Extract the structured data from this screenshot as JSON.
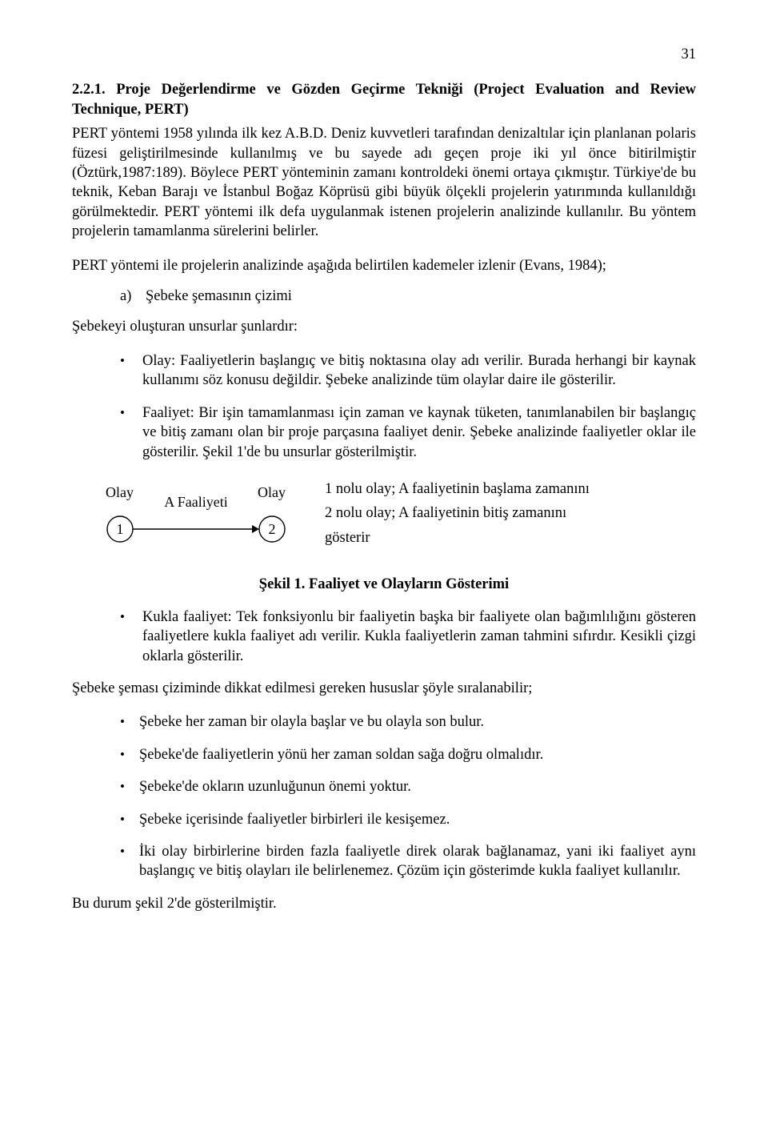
{
  "page_number": "31",
  "section_number": "2.2.1.",
  "section_title_rest": "Proje Değerlendirme ve Gözden Geçirme Tekniği (Project Evaluation and Review Technique, PERT)",
  "p1": "PERT yöntemi 1958 yılında ilk kez A.B.D. Deniz kuvvetleri tarafından denizaltılar için planlanan polaris füzesi geliştirilmesinde kullanılmış ve bu sayede adı geçen proje iki yıl önce bitirilmiştir (Öztürk,1987:189). Böylece PERT yönteminin zamanı kontroldeki önemi ortaya çıkmıştır. Türkiye'de bu teknik, Keban Barajı ve İstanbul Boğaz Köprüsü gibi büyük ölçekli projelerin yatırımında kullanıldığı görülmektedir. PERT yöntemi ilk defa uygulanmak istenen projelerin analizinde kullanılır. Bu yöntem projelerin tamamlanma sürelerini belirler.",
  "p2": "PERT yöntemi ile projelerin analizinde aşağıda belirtilen kademeler izlenir (Evans, 1984);",
  "list_a_marker": "a)",
  "list_a_text": "Şebeke şemasının çizimi",
  "p3": "Şebekeyi oluşturan unsurlar şunlardır:",
  "b1": "Olay: Faaliyetlerin başlangıç ve bitiş noktasına olay adı verilir. Burada herhangi bir kaynak kullanımı söz konusu değildir. Şebeke analizinde tüm olaylar daire ile gösterilir.",
  "b2": "Faaliyet: Bir işin tamamlanması için zaman ve kaynak tüketen, tanımlanabilen bir başlangıç ve bitiş zamanı olan bir proje parçasına faaliyet denir. Şebeke analizinde faaliyetler oklar ile gösterilir. Şekil 1'de bu unsurlar gösterilmiştir.",
  "fig": {
    "left_label": "Olay",
    "right_label": "Olay",
    "edge_label": "A Faaliyeti",
    "node1": "1",
    "node2": "2",
    "desc1": "1 nolu olay; A faaliyetinin başlama zamanını",
    "desc2": "2 nolu olay; A faaliyetinin bitiş zamanını",
    "desc3": "gösterir",
    "caption": "Şekil 1. Faaliyet ve Olayların Gösterimi",
    "stroke": "#000000",
    "bg": "#ffffff",
    "circle_r": 16,
    "line_width": 1.4,
    "arrow_size": 9,
    "font_size_label": 18,
    "font_size_node": 18
  },
  "b3": "Kukla faaliyet: Tek fonksiyonlu bir faaliyetin başka bir faaliyete olan bağımlılığını gösteren faaliyetlere kukla faaliyet adı verilir. Kukla faaliyetlerin zaman tahmini sıfırdır. Kesikli çizgi oklarla gösterilir.",
  "p4": "Şebeke şeması çiziminde dikkat edilmesi gereken hususlar şöyle sıralanabilir;",
  "r1": "Şebeke her zaman bir olayla başlar ve bu olayla son bulur.",
  "r2": "Şebeke'de faaliyetlerin yönü her zaman soldan sağa doğru olmalıdır.",
  "r3": "Şebeke'de okların uzunluğunun önemi yoktur.",
  "r4": "Şebeke içerisinde faaliyetler birbirleri ile kesişemez.",
  "r5": "İki olay birbirlerine birden fazla faaliyetle direk olarak bağlanamaz, yani iki faaliyet aynı başlangıç ve bitiş olayları ile belirlenemez. Çözüm için gösterimde kukla faaliyet kullanılır.",
  "p5": "Bu durum şekil 2'de gösterilmiştir.",
  "bullet_sym": "•"
}
